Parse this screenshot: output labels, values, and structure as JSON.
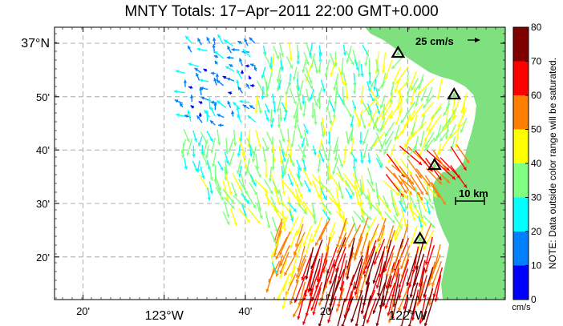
{
  "title": "MNTY Totals: 17−Apr−2011 22:00 GMT+0.000",
  "map": {
    "lon_labels": [
      {
        "lon": -123.333,
        "text": "20'",
        "size": "small"
      },
      {
        "lon": -123.0,
        "text": "123°W",
        "size": "large"
      },
      {
        "lon": -122.667,
        "text": "40'",
        "size": "small"
      },
      {
        "lon": -122.333,
        "text": "20'",
        "size": "small"
      },
      {
        "lon": -122.0,
        "text": "122°W",
        "size": "large"
      }
    ],
    "lat_labels": [
      {
        "lat": 37.0,
        "text": "37°N",
        "size": "large"
      },
      {
        "lat": 36.833,
        "text": "50'",
        "size": "small"
      },
      {
        "lat": 36.667,
        "text": "40'",
        "size": "small"
      },
      {
        "lat": 36.5,
        "text": "30'",
        "size": "small"
      },
      {
        "lat": 36.333,
        "text": "20'",
        "size": "small"
      }
    ],
    "lon_range": [
      -123.45,
      -121.6
    ],
    "lat_range": [
      36.2,
      37.05
    ],
    "land_color": "#7fe07f",
    "grid": "dashed",
    "reference_vector": {
      "label": "25 cm/s",
      "speed": 25
    },
    "scale_bar": {
      "label": "10 km"
    },
    "stations": [
      {
        "lon": -122.04,
        "lat": 36.97
      },
      {
        "lon": -121.81,
        "lat": 36.84
      },
      {
        "lon": -121.89,
        "lat": 36.62
      },
      {
        "lon": -121.95,
        "lat": 36.39
      }
    ]
  },
  "colorbar": {
    "ticks": [
      "0",
      "10",
      "20",
      "30",
      "40",
      "50",
      "60",
      "70",
      "80"
    ],
    "colors": [
      "#0000ff",
      "#0080ff",
      "#00ffff",
      "#80ff80",
      "#ffff00",
      "#ff8000",
      "#ff0000",
      "#800000"
    ],
    "min": 0,
    "max": 80,
    "unit": "cm/s",
    "note": "NOTE: Data outside color range will be saturated."
  }
}
